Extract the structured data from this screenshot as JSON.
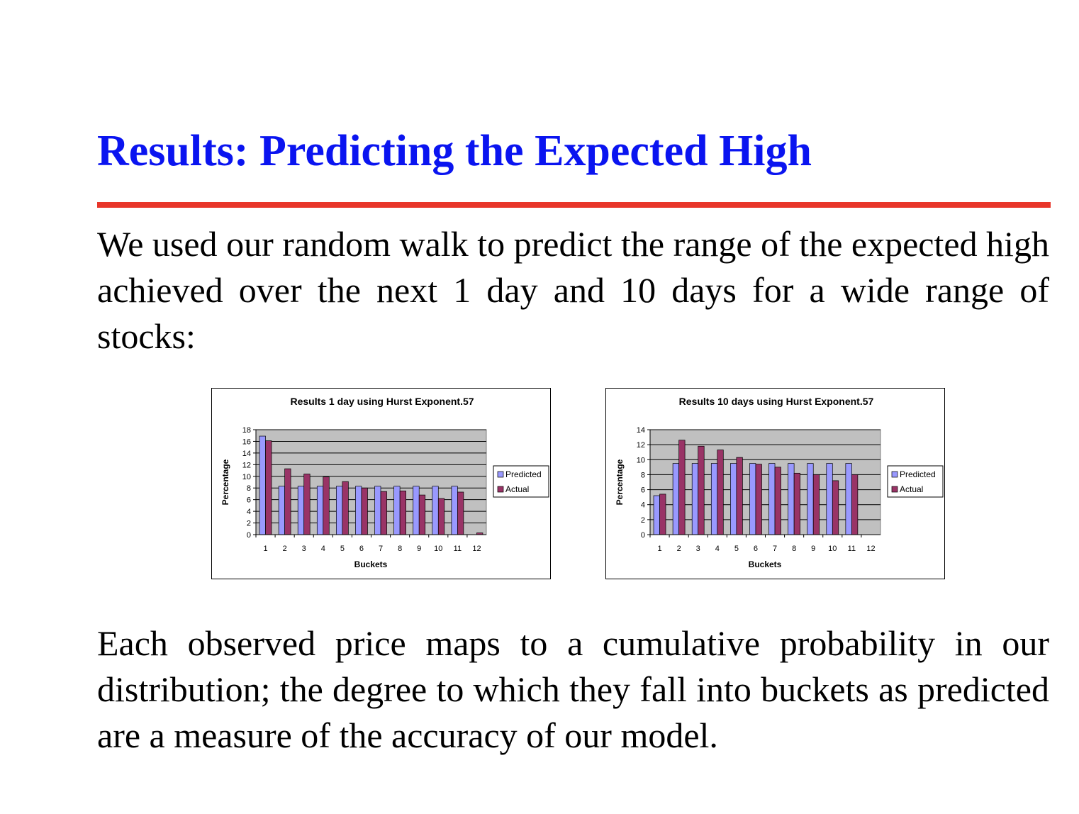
{
  "slide": {
    "title": "Results: Predicting the Expected High",
    "intro": "We used our random walk to predict the range of the expected high achieved over the next 1 day and 10 days for a wide range of stocks:",
    "conclusion": "Each observed price maps to a cumulative probability in our distribution; the degree to which they fall into buckets as predicted are a measure of the accuracy of our model."
  },
  "colors": {
    "title": "#0a14f0",
    "rule": "#e8362a",
    "predicted": "#9999ff",
    "actual": "#993366",
    "plot_area": "#c0c0c0"
  },
  "chart_data": [
    {
      "type": "bar",
      "title": "Results 1 day using Hurst Exponent.57",
      "xlabel": "Buckets",
      "ylabel": "Percentage",
      "ylim": [
        0,
        18
      ],
      "yticks": [
        0,
        2,
        4,
        6,
        8,
        10,
        12,
        14,
        16,
        18
      ],
      "categories": [
        "1",
        "2",
        "3",
        "4",
        "5",
        "6",
        "7",
        "8",
        "9",
        "10",
        "11",
        "12"
      ],
      "series": [
        {
          "name": "Predicted",
          "values": [
            16.9,
            8.3,
            8.3,
            8.3,
            8.3,
            8.3,
            8.3,
            8.3,
            8.3,
            8.3,
            8.3,
            0
          ]
        },
        {
          "name": "Actual",
          "values": [
            16.1,
            11.3,
            10.4,
            9.9,
            9.1,
            8.0,
            7.4,
            7.5,
            6.8,
            6.2,
            7.3,
            0.3
          ]
        }
      ],
      "grid": true,
      "legend": "right"
    },
    {
      "type": "bar",
      "title": "Results 10 days using Hurst Exponent.57",
      "xlabel": "Buckets",
      "ylabel": "Percentage",
      "ylim": [
        0,
        14
      ],
      "yticks": [
        0,
        2,
        4,
        6,
        8,
        10,
        12,
        14
      ],
      "categories": [
        "1",
        "2",
        "3",
        "4",
        "5",
        "6",
        "7",
        "8",
        "9",
        "10",
        "11",
        "12"
      ],
      "series": [
        {
          "name": "Predicted",
          "values": [
            5.2,
            9.5,
            9.5,
            9.5,
            9.5,
            9.5,
            9.5,
            9.5,
            9.5,
            9.5,
            9.5,
            0
          ]
        },
        {
          "name": "Actual",
          "values": [
            5.4,
            12.6,
            11.8,
            11.3,
            10.3,
            9.4,
            9.0,
            8.2,
            8.0,
            7.2,
            8.0,
            0
          ]
        }
      ],
      "grid": true,
      "legend": "right"
    }
  ]
}
